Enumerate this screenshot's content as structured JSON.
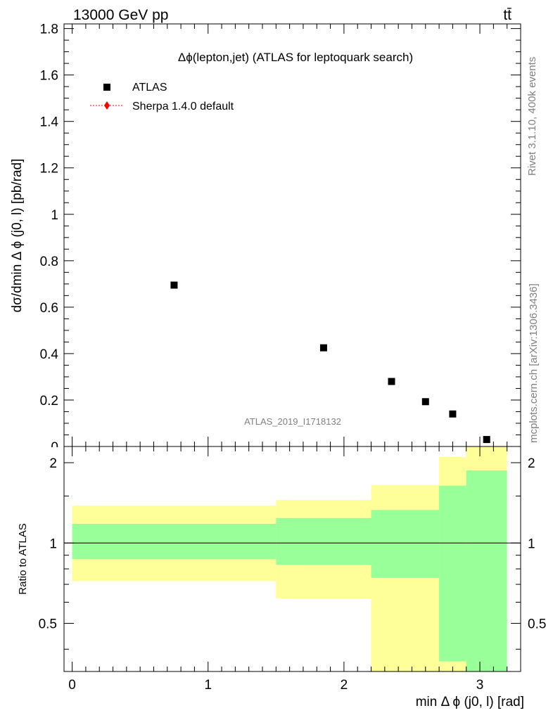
{
  "header": {
    "process": "13000 GeV pp",
    "final_state": "tt̄"
  },
  "side_labels": {
    "rivet": "Rivet 3.1.10,  400k events",
    "mcplots": "mcplots.cern.ch [arXiv:1306.3436]"
  },
  "colors": {
    "band_outer": "#ffff99",
    "band_inner": "#99ff99",
    "data_marker": "#000000",
    "mc_line": "#ff0000",
    "watermark": "#808080"
  },
  "chart_data": [
    {
      "type": "scatter",
      "title": "Δϕ(lepton,jet) (ATLAS for leptoquark search)",
      "ylabel": "dσ/dmin Δ ϕ (j0, l) [pb/rad]",
      "watermark": "ATLAS_2019_I1718132",
      "xlim": [
        -0.06,
        3.3
      ],
      "ylim": [
        0,
        1.82
      ],
      "yticks": [
        0.2,
        0.4,
        0.6,
        0.8,
        1,
        1.2,
        1.4,
        1.6,
        1.8
      ],
      "ytick_labels": [
        "0.2",
        "0.4",
        "0.6",
        "0.8",
        "1",
        "1.2",
        "1.4",
        "1.6",
        "1.8"
      ],
      "legend_position": "top-left",
      "legend": [
        {
          "name": "ATLAS",
          "marker": "square"
        },
        {
          "name": "Sherpa 1.4.0 default",
          "marker": "diamond-dotted-line"
        }
      ],
      "series": [
        {
          "name": "ATLAS",
          "x": [
            0.75,
            1.85,
            2.35,
            2.6,
            2.8,
            3.05
          ],
          "y": [
            0.695,
            0.425,
            0.28,
            0.193,
            0.14,
            0.03
          ]
        }
      ]
    },
    {
      "type": "area",
      "ylabel": "Ratio to ATLAS",
      "xlabel": "min Δ ϕ (j0, l) [rad]",
      "xlim": [
        -0.06,
        3.3
      ],
      "ylim": [
        0.33,
        2.3
      ],
      "yscale": "log",
      "xticks": [
        0,
        1,
        2,
        3
      ],
      "xtick_labels": [
        "0",
        "1",
        "2",
        "3"
      ],
      "yticks": [
        0.5,
        1,
        2
      ],
      "ytick_labels": [
        "0.5",
        "1",
        "2"
      ],
      "reference_line": 1,
      "bins": [
        {
          "x0": 0.0,
          "x1": 1.5,
          "outer": [
            0.72,
            1.38
          ],
          "inner": [
            0.87,
            1.18
          ]
        },
        {
          "x0": 1.5,
          "x1": 2.2,
          "outer": [
            0.62,
            1.45
          ],
          "inner": [
            0.83,
            1.24
          ]
        },
        {
          "x0": 2.2,
          "x1": 2.7,
          "outer": [
            0.33,
            1.65
          ],
          "inner": [
            0.74,
            1.33
          ]
        },
        {
          "x0": 2.7,
          "x1": 2.9,
          "outer": [
            0.33,
            2.1
          ],
          "inner": [
            0.36,
            1.64
          ]
        },
        {
          "x0": 2.9,
          "x1": 3.2,
          "outer": [
            0.33,
            2.3
          ],
          "inner": [
            0.33,
            1.87
          ]
        }
      ]
    }
  ]
}
